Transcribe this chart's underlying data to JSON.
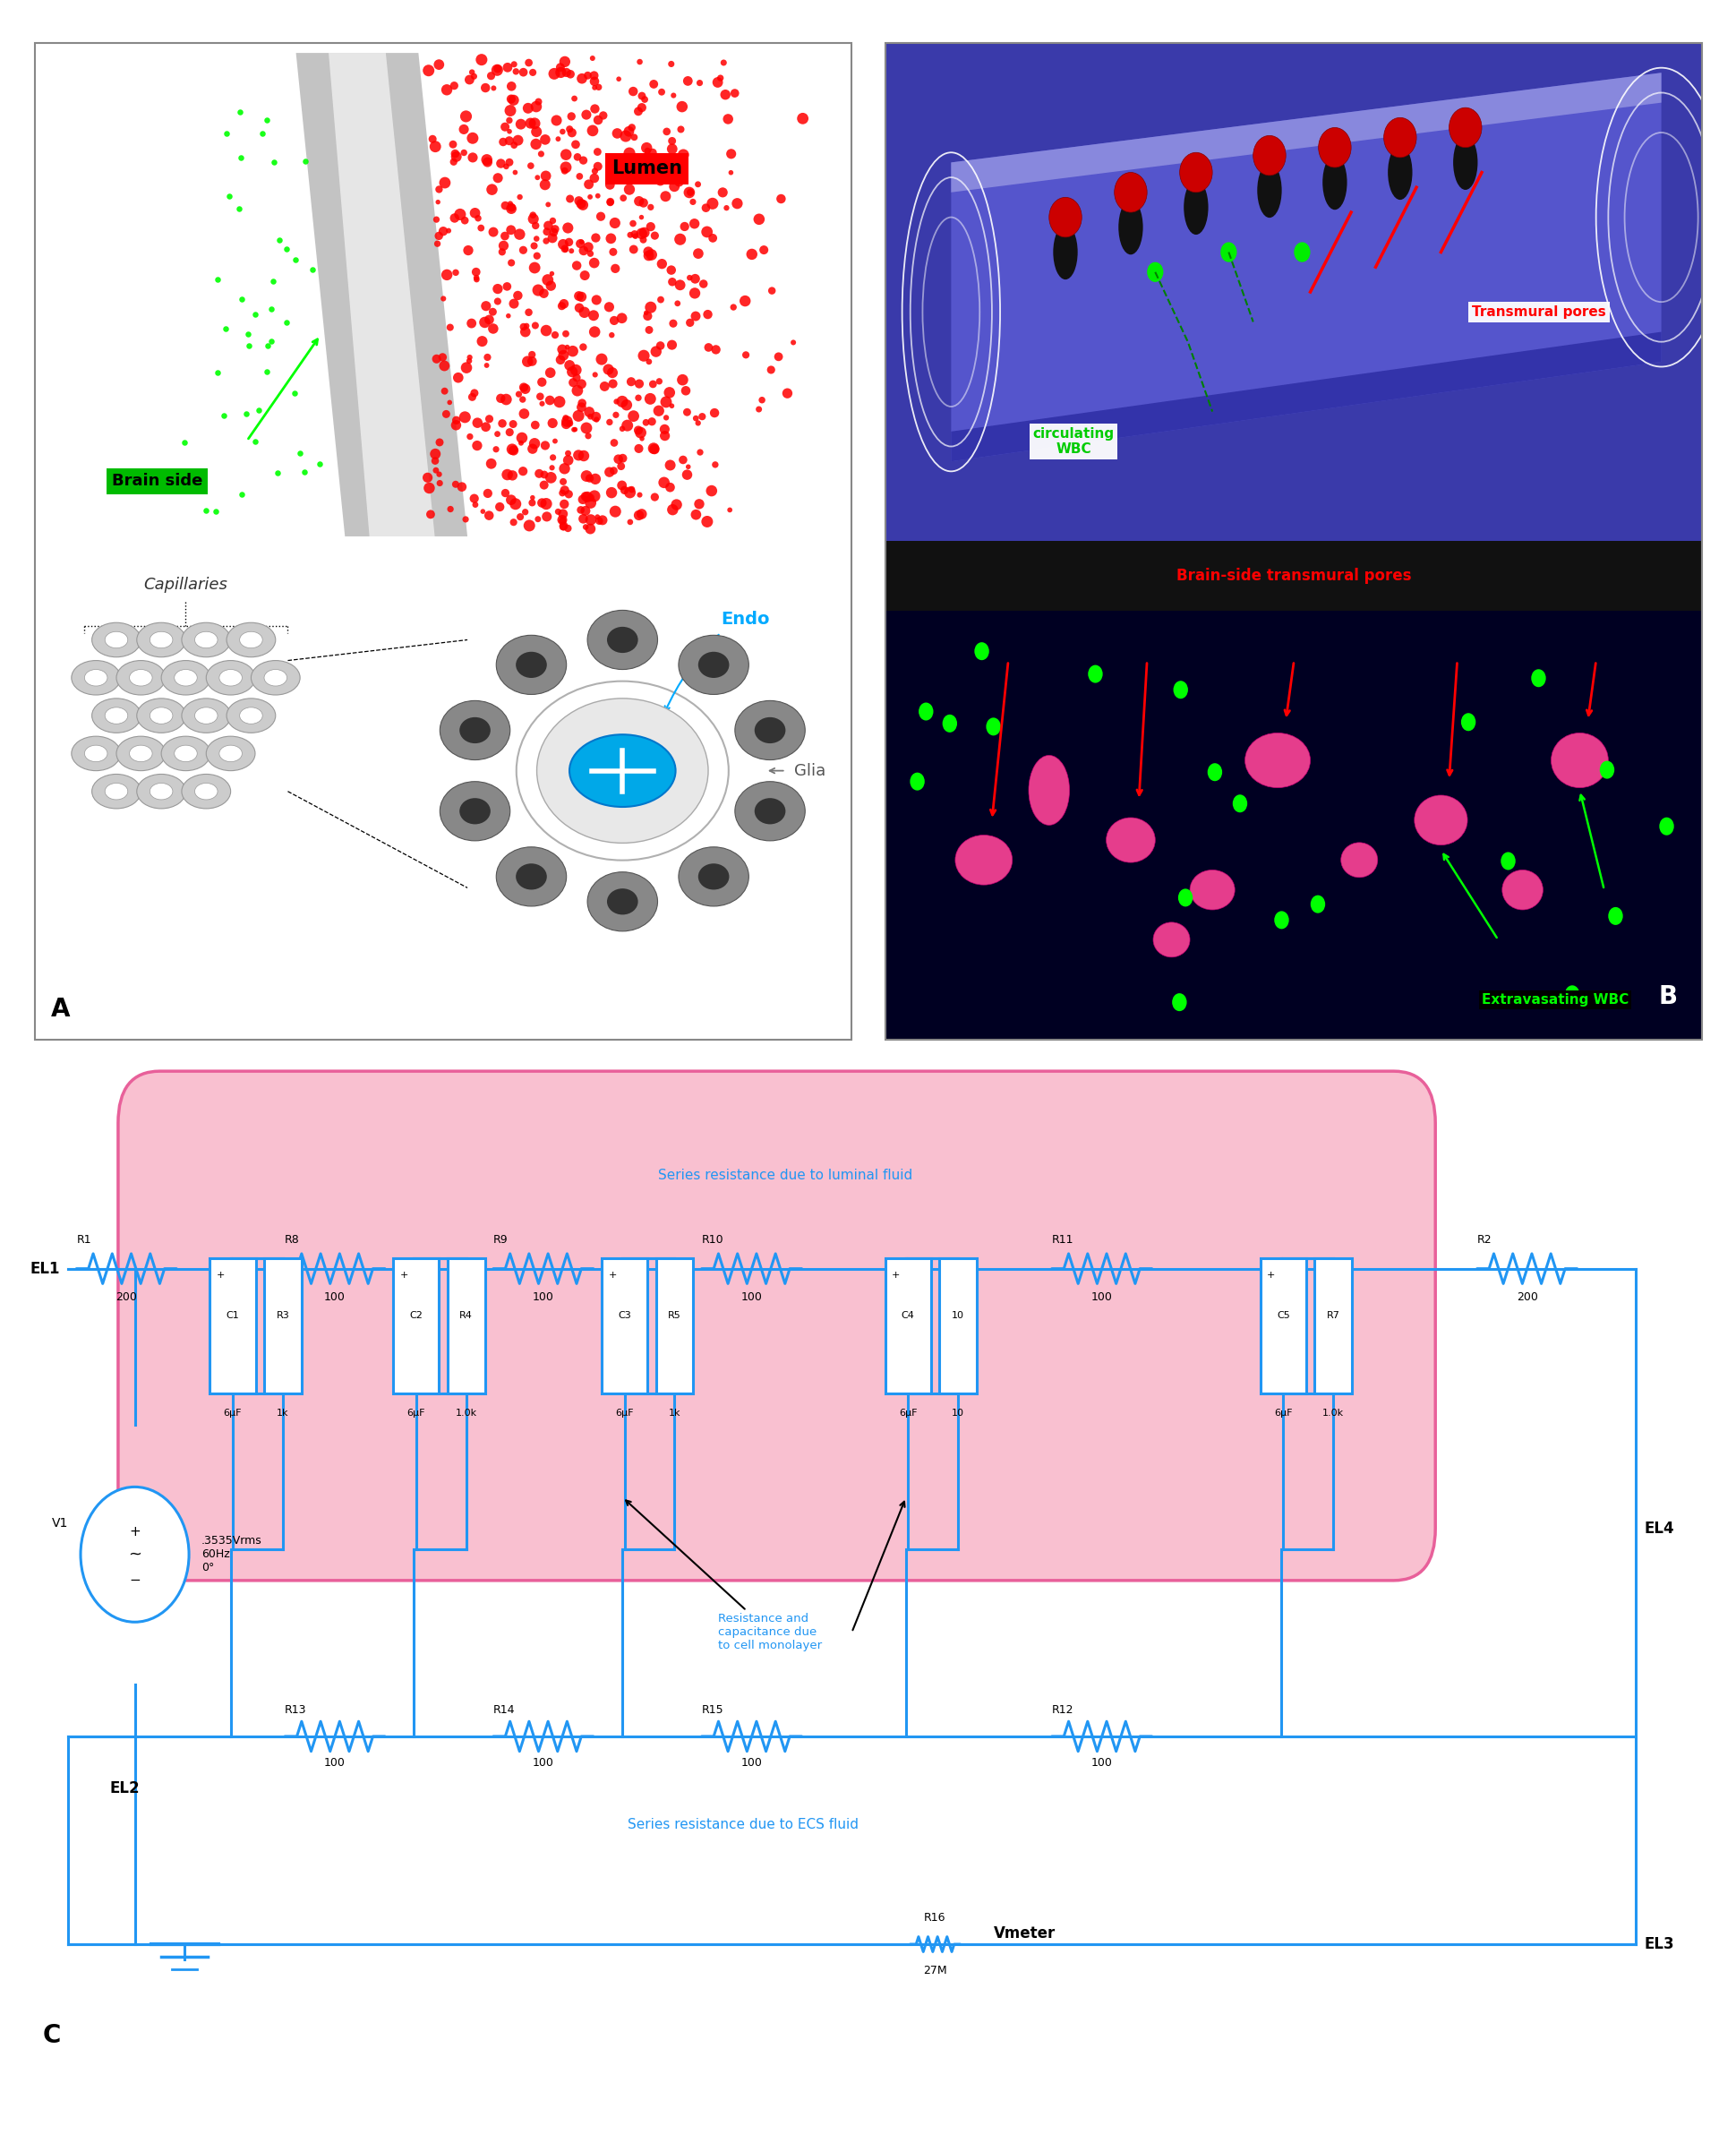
{
  "figure_width": 19.4,
  "figure_height": 23.93,
  "lumen_label": "Lumen",
  "brain_side_label": "Brain side",
  "capillaries_label": "Capillaries",
  "endo_label": "Endo",
  "glia_label": "Glia",
  "panel_A_label": "A",
  "panel_B_label": "B",
  "panel_C_label": "C",
  "transmural_pores_label": "Transmural pores",
  "circulating_wbc_label": "circulating\nWBC",
  "brain_transmural_label": "Brain-side transmural pores",
  "extravasating_wbc_label": "Extravasating WBC",
  "series_luminal_text": "Series resistance due to luminal fluid",
  "series_ecs_text": "Series resistance due to ECS fluid",
  "resistance_cap_text": "Resistance and\ncapacitance due\nto cell monolayer",
  "el1_label": "EL1",
  "el2_label": "EL2",
  "el3_label": "EL3",
  "el4_label": "EL4",
  "circuit_blue": "#2196F3",
  "circuit_pink_fill": "#f9c0d0",
  "circuit_pink_border": "#e8609a",
  "v1_text": ".3535Vrms\n60Hz\n0°",
  "v1_label": "V1",
  "vmeter_label": "Vmeter",
  "r1_val": "200",
  "r2_val": "200",
  "r8_val": "100",
  "r9_val": "100",
  "r10_val": "100",
  "r11_val": "100",
  "r3_val": "1k",
  "r4_val": "1.0k",
  "r5_val": "1k",
  "r6_val": "10",
  "r7_val": "1.0k",
  "r12_val": "100",
  "r13_val": "100",
  "r14_val": "100",
  "r15_val": "100",
  "r16_val": "27M",
  "c_val": "6μF"
}
